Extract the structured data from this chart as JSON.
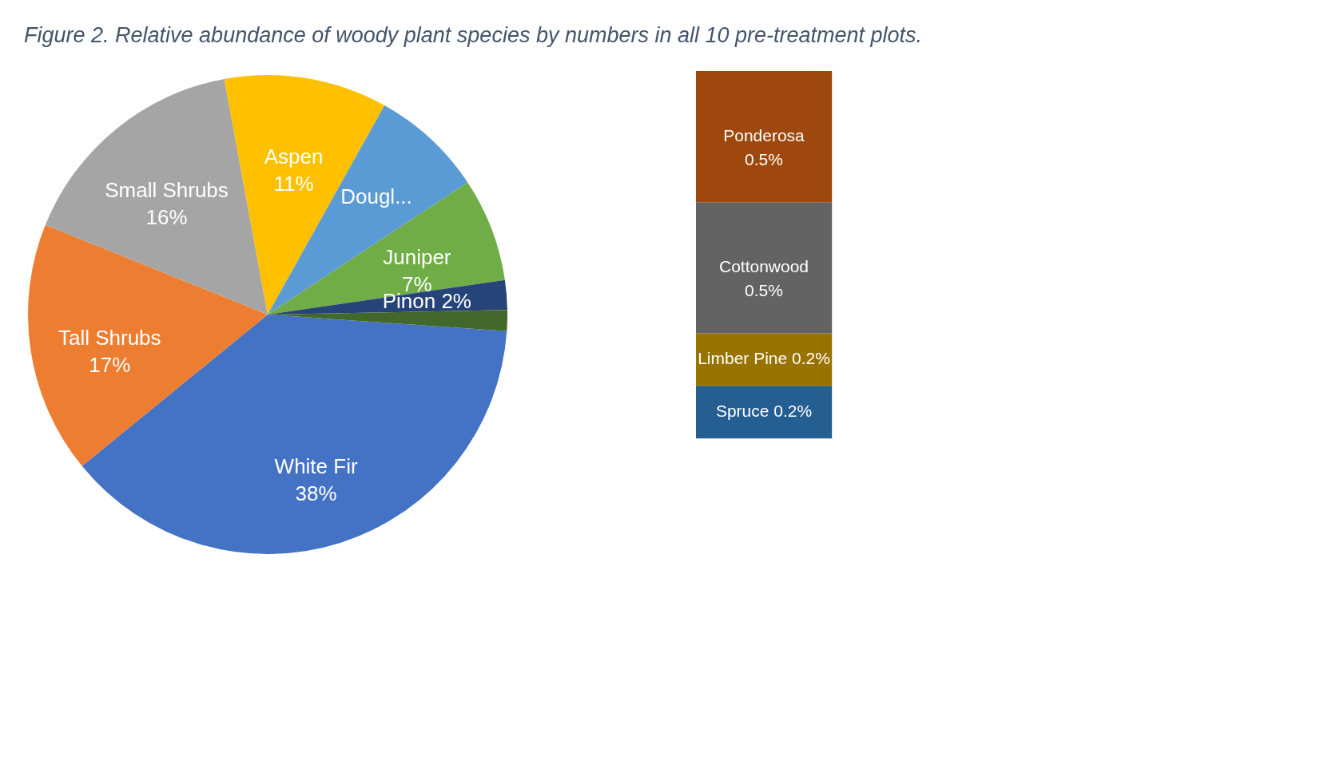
{
  "chart_data": [
    {
      "type": "pie",
      "title": "Figure 2. Relative abundance of woody plant species by numbers in all 10 pre-treatment plots.",
      "categories": [
        "White Fir",
        "Tall Shrubs",
        "Small Shrubs",
        "Aspen",
        "Dougl...",
        "Juniper",
        "Pinon",
        null
      ],
      "values": [
        38,
        17,
        16,
        11,
        7.6,
        7,
        2,
        1.4
      ],
      "value_labels": [
        "38%",
        "17%",
        "16%",
        "11%",
        null,
        "7%",
        "2%",
        null
      ],
      "colors": [
        "#4472c4",
        "#ed7d31",
        "#a5a5a5",
        "#ffc000",
        "#5b9bd5",
        "#70ad47",
        "#264478",
        "#43682b"
      ]
    },
    {
      "type": "bar",
      "stacked": true,
      "categories": [
        null
      ],
      "series": [
        {
          "name": "Spruce",
          "color": "#255e91",
          "values": [
            0.2
          ],
          "value_labels": [
            "0.2%"
          ]
        },
        {
          "name": "Limber Pine",
          "color": "#997300",
          "values": [
            0.2
          ],
          "value_labels": [
            "0.2%"
          ]
        },
        {
          "name": "Cottonwood",
          "color": "#636363",
          "values": [
            0.5
          ],
          "value_labels": [
            "0.5%"
          ]
        },
        {
          "name": "Ponderosa",
          "color": "#9e480e",
          "values": [
            0.5
          ],
          "value_labels": [
            "0.5%"
          ]
        }
      ]
    }
  ]
}
